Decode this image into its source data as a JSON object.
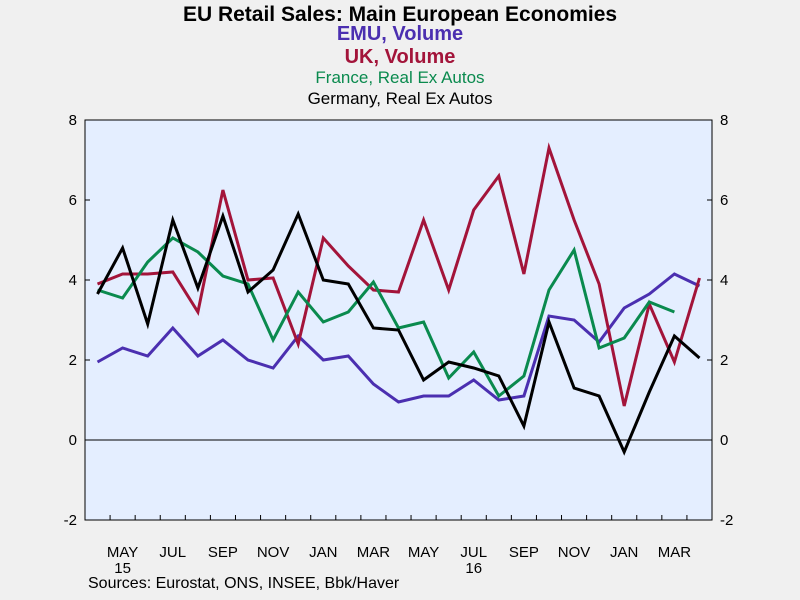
{
  "colors": {
    "title": "#000000",
    "emu": "#4b2fb0",
    "uk": "#a3143a",
    "france": "#0a8a4e",
    "germany": "#000000",
    "plot_bg": "#e4eeff",
    "page_bg": "#f0f0f0"
  },
  "titles": {
    "main": "EU Retail Sales: Main European Economies",
    "emu": "EMU, Volume",
    "uk": "UK, Volume",
    "france": "France, Real Ex Autos",
    "germany": "Germany, Real Ex Autos"
  },
  "source": "Sources:  Eurostat, ONS, INSEE, Bbk/Haver",
  "chart_data": {
    "type": "line",
    "ylim": [
      -2,
      8
    ],
    "yticks": [
      -2,
      0,
      2,
      4,
      6,
      8
    ],
    "grid": false,
    "zero_line": true,
    "x_months": [
      "2015-04",
      "2015-05",
      "2015-06",
      "2015-07",
      "2015-08",
      "2015-09",
      "2015-10",
      "2015-11",
      "2015-12",
      "2016-01",
      "2016-02",
      "2016-03",
      "2016-04",
      "2016-05",
      "2016-06",
      "2016-07",
      "2016-08",
      "2016-09",
      "2016-10",
      "2016-11",
      "2016-12",
      "2017-01",
      "2017-02",
      "2017-03",
      "2017-04"
    ],
    "x_tick_labels": [
      {
        "month": "2015-05",
        "label": "MAY",
        "year": "15"
      },
      {
        "month": "2015-07",
        "label": "JUL",
        "year": ""
      },
      {
        "month": "2015-09",
        "label": "SEP",
        "year": ""
      },
      {
        "month": "2015-11",
        "label": "NOV",
        "year": ""
      },
      {
        "month": "2016-01",
        "label": "JAN",
        "year": ""
      },
      {
        "month": "2016-03",
        "label": "MAR",
        "year": ""
      },
      {
        "month": "2016-05",
        "label": "MAY",
        "year": ""
      },
      {
        "month": "2016-07",
        "label": "JUL",
        "year": "16"
      },
      {
        "month": "2016-09",
        "label": "SEP",
        "year": ""
      },
      {
        "month": "2016-11",
        "label": "NOV",
        "year": ""
      },
      {
        "month": "2017-01",
        "label": "JAN",
        "year": ""
      },
      {
        "month": "2017-03",
        "label": "MAR",
        "year": ""
      }
    ],
    "series": [
      {
        "name": "EMU, Volume",
        "color": "#4b2fb0",
        "values": [
          1.95,
          2.3,
          2.1,
          2.8,
          2.1,
          2.5,
          2.0,
          1.8,
          2.6,
          2.0,
          2.1,
          1.4,
          0.95,
          1.1,
          1.1,
          1.5,
          1.0,
          1.1,
          3.1,
          3.0,
          2.45,
          3.3,
          3.65,
          4.15,
          3.85
        ]
      },
      {
        "name": "UK, Volume",
        "color": "#a3143a",
        "values": [
          3.9,
          4.15,
          4.15,
          4.2,
          3.2,
          6.25,
          4.0,
          4.05,
          2.4,
          5.05,
          4.35,
          3.75,
          3.7,
          5.5,
          3.75,
          5.75,
          6.6,
          4.15,
          7.3,
          5.5,
          3.9,
          0.85,
          3.4,
          1.95,
          4.05
        ]
      },
      {
        "name": "France, Real Ex Autos",
        "color": "#0a8a4e",
        "values": [
          3.75,
          3.55,
          4.45,
          5.05,
          4.7,
          4.1,
          3.9,
          2.5,
          3.7,
          2.95,
          3.2,
          3.95,
          2.8,
          2.95,
          1.55,
          2.2,
          1.1,
          1.6,
          3.75,
          4.75,
          2.3,
          2.55,
          3.45,
          3.2,
          null
        ]
      },
      {
        "name": "Germany, Real Ex Autos",
        "color": "#000000",
        "values": [
          3.65,
          4.8,
          2.9,
          5.5,
          3.8,
          5.6,
          3.7,
          4.25,
          5.65,
          4.0,
          3.9,
          2.8,
          2.75,
          1.5,
          1.95,
          1.8,
          1.6,
          0.35,
          2.95,
          1.3,
          1.1,
          -0.3,
          1.2,
          2.6,
          2.05
        ]
      }
    ]
  }
}
